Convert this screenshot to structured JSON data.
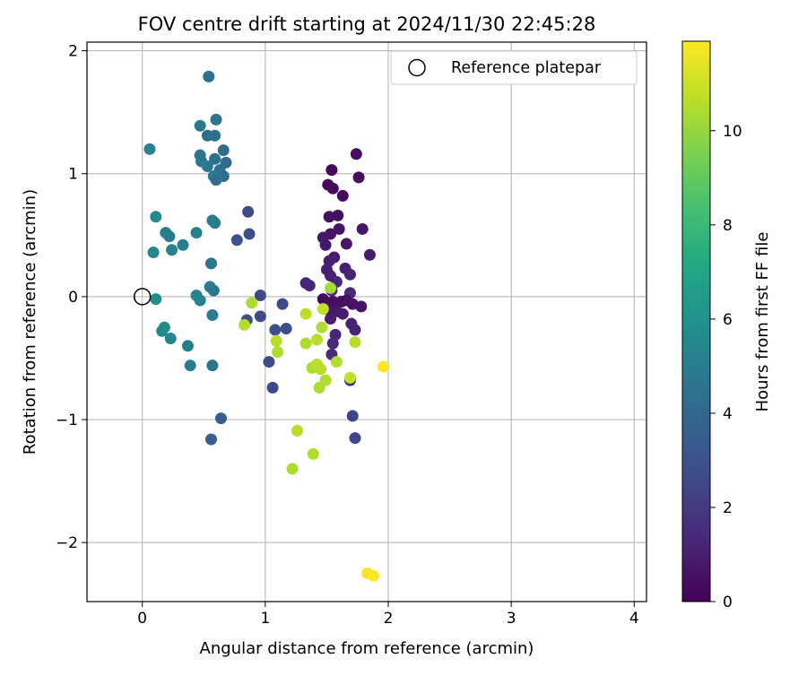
{
  "chart_data": {
    "type": "scatter",
    "title": "FOV centre drift starting at 2024/11/30 22:45:28",
    "xlabel": "Angular distance from reference (arcmin)",
    "ylabel": "Rotation from reference (arcmin)",
    "xlim": [
      -0.45,
      4.1
    ],
    "ylim": [
      -2.48,
      2.07
    ],
    "xticks": [
      0,
      1,
      2,
      3,
      4
    ],
    "xtick_labels": [
      "0",
      "1",
      "2",
      "3",
      "4"
    ],
    "yticks": [
      -2,
      -1,
      0,
      1,
      2
    ],
    "ytick_labels": [
      "−2",
      "−1",
      "0",
      "1",
      "2"
    ],
    "grid": true,
    "legend": {
      "position": "top-right",
      "label": "Reference platepar"
    },
    "reference_point": {
      "x": 0,
      "y": 0
    },
    "colorbar": {
      "label": "Hours from first FF file",
      "range": [
        0,
        11.9
      ],
      "ticks": [
        0,
        2,
        4,
        6,
        8,
        10
      ],
      "tick_labels": [
        "0",
        "2",
        "4",
        "6",
        "8",
        "10"
      ],
      "colormap": "viridis"
    },
    "points": [
      {
        "x": 1.51,
        "y": 0.91,
        "h": 0.2
      },
      {
        "x": 1.54,
        "y": 1.03,
        "h": 0.2
      },
      {
        "x": 1.55,
        "y": 0.88,
        "h": 0.3
      },
      {
        "x": 1.63,
        "y": 0.82,
        "h": 0.3
      },
      {
        "x": 1.74,
        "y": 1.16,
        "h": 0.4
      },
      {
        "x": 1.76,
        "y": 0.97,
        "h": 0.4
      },
      {
        "x": 1.52,
        "y": 0.65,
        "h": 0.5
      },
      {
        "x": 1.59,
        "y": 0.66,
        "h": 0.5
      },
      {
        "x": 1.6,
        "y": 0.55,
        "h": 0.6
      },
      {
        "x": 1.53,
        "y": 0.51,
        "h": 0.6
      },
      {
        "x": 1.47,
        "y": 0.48,
        "h": 0.7
      },
      {
        "x": 1.66,
        "y": 0.43,
        "h": 0.7
      },
      {
        "x": 1.49,
        "y": 0.42,
        "h": 0.8
      },
      {
        "x": 1.79,
        "y": 0.55,
        "h": 0.8
      },
      {
        "x": 1.85,
        "y": 0.34,
        "h": 0.9
      },
      {
        "x": 1.56,
        "y": 0.32,
        "h": 0.9
      },
      {
        "x": 1.52,
        "y": 0.29,
        "h": 1.0
      },
      {
        "x": 1.65,
        "y": 0.23,
        "h": 1.0
      },
      {
        "x": 1.5,
        "y": 0.22,
        "h": 1.1
      },
      {
        "x": 1.53,
        "y": 0.17,
        "h": 1.1
      },
      {
        "x": 1.69,
        "y": 0.18,
        "h": 1.2
      },
      {
        "x": 1.33,
        "y": 0.11,
        "h": 1.2
      },
      {
        "x": 1.36,
        "y": 0.09,
        "h": 1.3
      },
      {
        "x": 1.58,
        "y": 0.12,
        "h": 1.3
      },
      {
        "x": 1.54,
        "y": 0.05,
        "h": 1.4
      },
      {
        "x": 1.69,
        "y": 0.03,
        "h": 1.4
      },
      {
        "x": 1.47,
        "y": -0.02,
        "h": 0.3
      },
      {
        "x": 1.55,
        "y": -0.04,
        "h": 0.4
      },
      {
        "x": 1.62,
        "y": -0.04,
        "h": 0.5
      },
      {
        "x": 1.66,
        "y": -0.03,
        "h": 0.5
      },
      {
        "x": 1.71,
        "y": -0.06,
        "h": 0.6
      },
      {
        "x": 1.78,
        "y": -0.08,
        "h": 0.6
      },
      {
        "x": 1.5,
        "y": -0.1,
        "h": 0.7
      },
      {
        "x": 1.58,
        "y": -0.12,
        "h": 0.8
      },
      {
        "x": 1.63,
        "y": -0.14,
        "h": 0.9
      },
      {
        "x": 1.53,
        "y": -0.18,
        "h": 1.0
      },
      {
        "x": 1.7,
        "y": -0.22,
        "h": 1.1
      },
      {
        "x": 1.73,
        "y": -0.27,
        "h": 1.2
      },
      {
        "x": 1.57,
        "y": -0.31,
        "h": 1.3
      },
      {
        "x": 1.55,
        "y": -0.38,
        "h": 1.4
      },
      {
        "x": 1.54,
        "y": -0.47,
        "h": 1.5
      },
      {
        "x": 1.69,
        "y": -0.68,
        "h": 1.6
      },
      {
        "x": 1.71,
        "y": -0.97,
        "h": 2.4
      },
      {
        "x": 1.73,
        "y": -1.15,
        "h": 2.5
      },
      {
        "x": 0.96,
        "y": 0.01,
        "h": 2.6
      },
      {
        "x": 0.96,
        "y": -0.16,
        "h": 2.7
      },
      {
        "x": 0.85,
        "y": -0.19,
        "h": 2.8
      },
      {
        "x": 1.14,
        "y": -0.06,
        "h": 2.6
      },
      {
        "x": 1.17,
        "y": -0.26,
        "h": 2.8
      },
      {
        "x": 1.08,
        "y": -0.27,
        "h": 2.9
      },
      {
        "x": 1.03,
        "y": -0.53,
        "h": 2.7
      },
      {
        "x": 1.06,
        "y": -0.74,
        "h": 2.6
      },
      {
        "x": 0.86,
        "y": 0.69,
        "h": 2.7
      },
      {
        "x": 0.87,
        "y": 0.51,
        "h": 2.8
      },
      {
        "x": 0.77,
        "y": 0.46,
        "h": 3.0
      },
      {
        "x": 0.64,
        "y": -0.99,
        "h": 3.5
      },
      {
        "x": 0.56,
        "y": -1.16,
        "h": 3.6
      },
      {
        "x": 0.54,
        "y": 1.79,
        "h": 4.5
      },
      {
        "x": 0.6,
        "y": 1.44,
        "h": 4.6
      },
      {
        "x": 0.47,
        "y": 1.39,
        "h": 4.7
      },
      {
        "x": 0.53,
        "y": 1.31,
        "h": 4.4
      },
      {
        "x": 0.59,
        "y": 1.31,
        "h": 4.3
      },
      {
        "x": 0.66,
        "y": 1.19,
        "h": 4.2
      },
      {
        "x": 0.47,
        "y": 1.15,
        "h": 4.6
      },
      {
        "x": 0.59,
        "y": 1.12,
        "h": 4.3
      },
      {
        "x": 0.48,
        "y": 1.1,
        "h": 4.7
      },
      {
        "x": 0.68,
        "y": 1.09,
        "h": 4.2
      },
      {
        "x": 0.53,
        "y": 1.06,
        "h": 4.8
      },
      {
        "x": 0.63,
        "y": 1.03,
        "h": 4.4
      },
      {
        "x": 0.58,
        "y": 0.98,
        "h": 4.9
      },
      {
        "x": 0.66,
        "y": 0.98,
        "h": 4.3
      },
      {
        "x": 0.6,
        "y": 0.95,
        "h": 4.2
      },
      {
        "x": 0.57,
        "y": 0.62,
        "h": 5.0
      },
      {
        "x": 0.59,
        "y": 0.6,
        "h": 4.9
      },
      {
        "x": 0.56,
        "y": 0.27,
        "h": 4.6
      },
      {
        "x": 0.55,
        "y": 0.08,
        "h": 5.0
      },
      {
        "x": 0.58,
        "y": 0.05,
        "h": 4.7
      },
      {
        "x": 0.57,
        "y": -0.15,
        "h": 4.9
      },
      {
        "x": 0.57,
        "y": -0.56,
        "h": 4.5
      },
      {
        "x": 0.06,
        "y": 1.2,
        "h": 5.3
      },
      {
        "x": 0.11,
        "y": 0.65,
        "h": 5.6
      },
      {
        "x": 0.19,
        "y": 0.52,
        "h": 5.2
      },
      {
        "x": 0.22,
        "y": 0.49,
        "h": 5.0
      },
      {
        "x": 0.33,
        "y": 0.42,
        "h": 4.9
      },
      {
        "x": 0.24,
        "y": 0.38,
        "h": 5.3
      },
      {
        "x": 0.09,
        "y": 0.36,
        "h": 5.5
      },
      {
        "x": 0.44,
        "y": 0.52,
        "h": 5.1
      },
      {
        "x": 0.44,
        "y": 0.01,
        "h": 5.4
      },
      {
        "x": 0.47,
        "y": -0.03,
        "h": 5.3
      },
      {
        "x": 0.11,
        "y": -0.02,
        "h": 5.9
      },
      {
        "x": 0.18,
        "y": -0.25,
        "h": 5.7
      },
      {
        "x": 0.16,
        "y": -0.28,
        "h": 5.6
      },
      {
        "x": 0.23,
        "y": -0.34,
        "h": 5.4
      },
      {
        "x": 0.37,
        "y": -0.4,
        "h": 5.1
      },
      {
        "x": 0.39,
        "y": -0.56,
        "h": 5.0
      },
      {
        "x": 0.89,
        "y": -0.05,
        "h": 10.4
      },
      {
        "x": 0.83,
        "y": -0.23,
        "h": 10.5
      },
      {
        "x": 1.09,
        "y": -0.36,
        "h": 10.6
      },
      {
        "x": 1.1,
        "y": -0.45,
        "h": 10.5
      },
      {
        "x": 1.33,
        "y": -0.14,
        "h": 10.7
      },
      {
        "x": 1.33,
        "y": -0.38,
        "h": 10.4
      },
      {
        "x": 1.42,
        "y": -0.35,
        "h": 10.6
      },
      {
        "x": 1.46,
        "y": -0.25,
        "h": 10.5
      },
      {
        "x": 1.47,
        "y": -0.1,
        "h": 10.8
      },
      {
        "x": 1.53,
        "y": 0.07,
        "h": 10.3
      },
      {
        "x": 1.73,
        "y": -0.37,
        "h": 10.6
      },
      {
        "x": 1.58,
        "y": -0.53,
        "h": 10.5
      },
      {
        "x": 1.38,
        "y": -0.58,
        "h": 10.4
      },
      {
        "x": 1.42,
        "y": -0.55,
        "h": 10.7
      },
      {
        "x": 1.45,
        "y": -0.59,
        "h": 10.6
      },
      {
        "x": 1.49,
        "y": -0.68,
        "h": 10.5
      },
      {
        "x": 1.44,
        "y": -0.74,
        "h": 10.4
      },
      {
        "x": 1.69,
        "y": -0.66,
        "h": 10.8
      },
      {
        "x": 1.26,
        "y": -1.09,
        "h": 10.6
      },
      {
        "x": 1.39,
        "y": -1.28,
        "h": 10.5
      },
      {
        "x": 1.22,
        "y": -1.4,
        "h": 10.4
      },
      {
        "x": 1.96,
        "y": -0.57,
        "h": 11.9
      },
      {
        "x": 1.83,
        "y": -2.25,
        "h": 11.8
      },
      {
        "x": 1.88,
        "y": -2.27,
        "h": 11.9
      }
    ]
  }
}
